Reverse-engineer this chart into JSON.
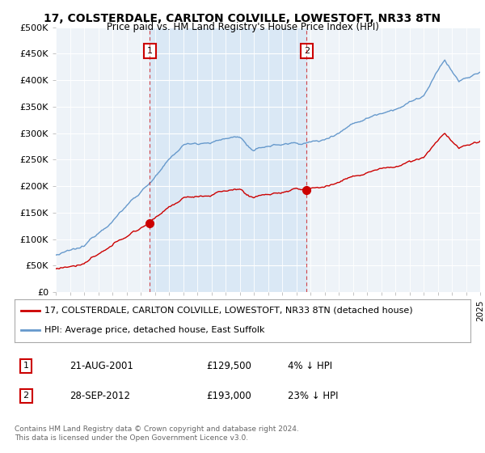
{
  "title": "17, COLSTERDALE, CARLTON COLVILLE, LOWESTOFT, NR33 8TN",
  "subtitle": "Price paid vs. HM Land Registry's House Price Index (HPI)",
  "bg_color": "#eef3f8",
  "highlight_color": "#dae8f5",
  "grid_color": "#ffffff",
  "y_min": 0,
  "y_max": 500000,
  "y_ticks": [
    0,
    50000,
    100000,
    150000,
    200000,
    250000,
    300000,
    350000,
    400000,
    450000,
    500000
  ],
  "y_tick_labels": [
    "£0",
    "£50K",
    "£100K",
    "£150K",
    "£200K",
    "£250K",
    "£300K",
    "£350K",
    "£400K",
    "£450K",
    "£500K"
  ],
  "x_start_year": 1995,
  "x_end_year": 2025,
  "sale1_year": 2001.64,
  "sale1_price": 129500,
  "sale2_year": 2012.74,
  "sale2_price": 193000,
  "sale_color": "#cc0000",
  "hpi_color": "#6699cc",
  "legend_label1": "17, COLSTERDALE, CARLTON COLVILLE, LOWESTOFT, NR33 8TN (detached house)",
  "legend_label2": "HPI: Average price, detached house, East Suffolk",
  "annotation1_date": "21-AUG-2001",
  "annotation1_price": "£129,500",
  "annotation1_pct": "4% ↓ HPI",
  "annotation2_date": "28-SEP-2012",
  "annotation2_price": "£193,000",
  "annotation2_pct": "23% ↓ HPI",
  "footer": "Contains HM Land Registry data © Crown copyright and database right 2024.\nThis data is licensed under the Open Government Licence v3.0."
}
